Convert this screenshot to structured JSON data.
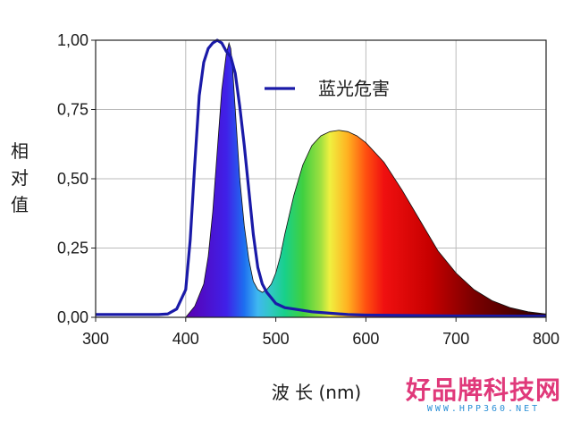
{
  "chart_data": {
    "type": "line",
    "xlabel": "波 长 (nm)",
    "ylabel": "相对值",
    "xlim": [
      300,
      800
    ],
    "ylim": [
      0,
      1.0
    ],
    "x_ticks": [
      "300",
      "400",
      "500",
      "600",
      "700",
      "800"
    ],
    "y_ticks": [
      "0,00",
      "0,25",
      "0,50",
      "0,75",
      "1,00"
    ],
    "grid": true,
    "legend": "top-right",
    "series": [
      {
        "name": "蓝光危害",
        "style": "line",
        "color": "#1a1aa8",
        "x": [
          300,
          370,
          380,
          390,
          400,
          405,
          410,
          415,
          420,
          425,
          430,
          435,
          440,
          445,
          450,
          455,
          460,
          465,
          470,
          475,
          480,
          485,
          490,
          495,
          500,
          510,
          520,
          540,
          560,
          580,
          600,
          700,
          800
        ],
        "y": [
          0.01,
          0.01,
          0.012,
          0.03,
          0.1,
          0.28,
          0.55,
          0.8,
          0.92,
          0.97,
          0.99,
          1.0,
          0.99,
          0.96,
          0.94,
          0.88,
          0.76,
          0.62,
          0.46,
          0.3,
          0.18,
          0.12,
          0.09,
          0.07,
          0.05,
          0.035,
          0.03,
          0.02,
          0.015,
          0.01,
          0.008,
          0.005,
          0.004
        ]
      },
      {
        "name": "",
        "style": "spectrum-fill",
        "x": [
          300,
          400,
          410,
          420,
          425,
          430,
          435,
          440,
          445,
          448,
          450,
          452,
          455,
          460,
          465,
          470,
          475,
          480,
          485,
          490,
          495,
          500,
          505,
          510,
          520,
          530,
          540,
          550,
          560,
          570,
          580,
          590,
          600,
          620,
          640,
          660,
          680,
          700,
          720,
          740,
          760,
          780,
          800
        ],
        "y": [
          0.0,
          0.0,
          0.04,
          0.12,
          0.22,
          0.38,
          0.6,
          0.82,
          0.95,
          0.99,
          0.97,
          0.9,
          0.75,
          0.5,
          0.33,
          0.21,
          0.13,
          0.1,
          0.09,
          0.1,
          0.12,
          0.16,
          0.22,
          0.3,
          0.44,
          0.55,
          0.62,
          0.655,
          0.67,
          0.675,
          0.67,
          0.655,
          0.63,
          0.56,
          0.46,
          0.35,
          0.24,
          0.16,
          0.1,
          0.06,
          0.035,
          0.02,
          0.012
        ]
      }
    ]
  },
  "colors": {
    "curve": "#1a1aa8",
    "grid": "#bbbbbb",
    "frame": "#222222"
  },
  "watermark": {
    "main": "好品牌科技网",
    "sub": "WWW.HPP360.NET"
  }
}
